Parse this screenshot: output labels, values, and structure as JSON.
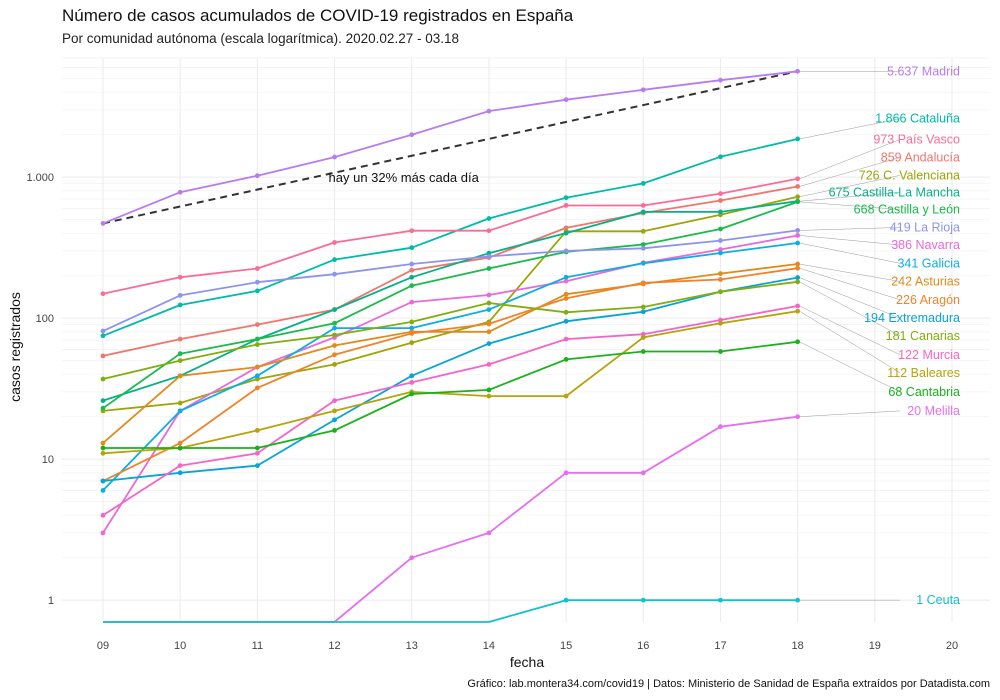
{
  "chart_data": {
    "type": "line",
    "title": "Número de casos acumulados de COVID-19 registrados en España",
    "subtitle": "Por comunidad autónoma (escala logarítmica). 2020.02.27 - 03.18",
    "xlabel": "fecha",
    "ylabel": "casos registrados",
    "caption": "Gráfico: lab.montera34.com/covid19 | Datos: Ministerio de Sanidad de España extraídos por Datadista.com",
    "x_ticks": [
      "09",
      "10",
      "11",
      "12",
      "13",
      "14",
      "15",
      "16",
      "17",
      "18",
      "19",
      "20"
    ],
    "xlim": [
      9,
      20
    ],
    "y_scale": "log",
    "ylim": [
      0.7,
      7000
    ],
    "y_ticks": [
      {
        "value": 1,
        "label": "1"
      },
      {
        "value": 10,
        "label": "10"
      },
      {
        "value": 100,
        "label": "100"
      },
      {
        "value": 1000,
        "label": "1.000"
      }
    ],
    "grid": true,
    "x": [
      9,
      10,
      11,
      12,
      13,
      14,
      15,
      16,
      17,
      18
    ],
    "trend": {
      "x": [
        9,
        18
      ],
      "y": [
        470,
        5637
      ],
      "label": "hay un 32% más cada día",
      "label_x": 12,
      "label_y": 1000
    },
    "series": [
      {
        "name": "Madrid",
        "end_label": "5.637 Madrid",
        "color": "#b77cf0",
        "values": [
          470,
          782,
          1024,
          1388,
          2000,
          2940,
          3544,
          4165,
          4871,
          5637
        ]
      },
      {
        "name": "Cataluña",
        "end_label": "1.866 Cataluña",
        "color": "#00bba7",
        "values": [
          75,
          124,
          156,
          260,
          316,
          509,
          715,
          903,
          1394,
          1866
        ]
      },
      {
        "name": "País Vasco",
        "end_label": "973 País Vasco",
        "color": "#fb6b96",
        "values": [
          149,
          195,
          225,
          344,
          417,
          417,
          630,
          630,
          764,
          973
        ]
      },
      {
        "name": "Andalucía",
        "end_label": "859 Andalucía",
        "color": "#f0766d",
        "values": [
          54,
          71,
          90,
          115,
          219,
          269,
          437,
          557,
          683,
          859
        ]
      },
      {
        "name": "C. Valenciana",
        "end_label": "726 C. Valenciana",
        "color": "#9ca606",
        "values": [
          22,
          25,
          37,
          47,
          67,
          94,
          413,
          413,
          541,
          726
        ]
      },
      {
        "name": "Castilla-La Mancha",
        "end_label": "675 Castilla-La Mancha",
        "color": "#05b287",
        "values": [
          26,
          39,
          71,
          115,
          195,
          289,
          401,
          567,
          567,
          675
        ]
      },
      {
        "name": "Castilla y León",
        "end_label": "668 Castilla y León",
        "color": "#1bba4a",
        "values": [
          23,
          56,
          71,
          92,
          170,
          225,
          295,
          333,
          429,
          668
        ]
      },
      {
        "name": "La Rioja",
        "end_label": "419 La Rioja",
        "color": "#8d94ec",
        "values": [
          81,
          145,
          180,
          205,
          242,
          274,
          300,
          313,
          355,
          419
        ]
      },
      {
        "name": "Navarra",
        "end_label": "386 Navarra",
        "color": "#e96ad8",
        "values": [
          3,
          22,
          45,
          73,
          130,
          146,
          183,
          247,
          307,
          386
        ]
      },
      {
        "name": "Galicia",
        "end_label": "341 Galicia",
        "color": "#0caee6",
        "values": [
          6,
          22,
          39,
          85,
          85,
          115,
          195,
          245,
          290,
          341
        ]
      },
      {
        "name": "Asturias",
        "end_label": "242 Asturias",
        "color": "#e08b1a",
        "values": [
          13,
          39,
          45,
          64,
          80,
          80,
          148,
          175,
          207,
          242
        ]
      },
      {
        "name": "Aragón",
        "end_label": "226 Aragón",
        "color": "#f0832a",
        "values": [
          7,
          13,
          32,
          55,
          78,
          91,
          138,
          178,
          188,
          226
        ]
      },
      {
        "name": "Extremadura",
        "end_label": "194 Extremadura",
        "color": "#08a5d4",
        "values": [
          7,
          8,
          9,
          19,
          39,
          66,
          95,
          111,
          154,
          194
        ]
      },
      {
        "name": "Canarias",
        "end_label": "181 Canarias",
        "color": "#82ad0c",
        "values": [
          37,
          50,
          65,
          76,
          94,
          128,
          110,
          120,
          154,
          181
        ]
      },
      {
        "name": "Murcia",
        "end_label": "122 Murcia",
        "color": "#f564c8",
        "values": [
          4,
          9,
          11,
          26,
          35,
          47,
          71,
          77,
          97,
          122
        ]
      },
      {
        "name": "Baleares",
        "end_label": "112 Baleares",
        "color": "#b8a20d",
        "values": [
          11,
          12,
          16,
          22,
          30,
          28,
          28,
          73,
          92,
          112
        ]
      },
      {
        "name": "Cantabria",
        "end_label": "68 Cantabria",
        "color": "#19b21a",
        "values": [
          12,
          12,
          12,
          16,
          29,
          31,
          51,
          58,
          58,
          68
        ]
      },
      {
        "name": "Melilla",
        "end_label": "20 Melilla",
        "color": "#e56ff0",
        "values": [
          0.7,
          0.7,
          0.7,
          0.7,
          2,
          3,
          8,
          8,
          17,
          20
        ]
      },
      {
        "name": "Ceuta",
        "end_label": "1 Ceuta",
        "color": "#13c0d0",
        "values": [
          0.7,
          0.7,
          0.7,
          0.7,
          0.7,
          0.7,
          1,
          1,
          1,
          1
        ]
      }
    ],
    "end_label_values": [
      5637,
      2600,
      1850,
      1380,
      1030,
      780,
      590,
      440,
      330,
      245,
      182,
      135,
      100,
      75,
      55,
      41,
      30,
      22,
      1
    ]
  }
}
